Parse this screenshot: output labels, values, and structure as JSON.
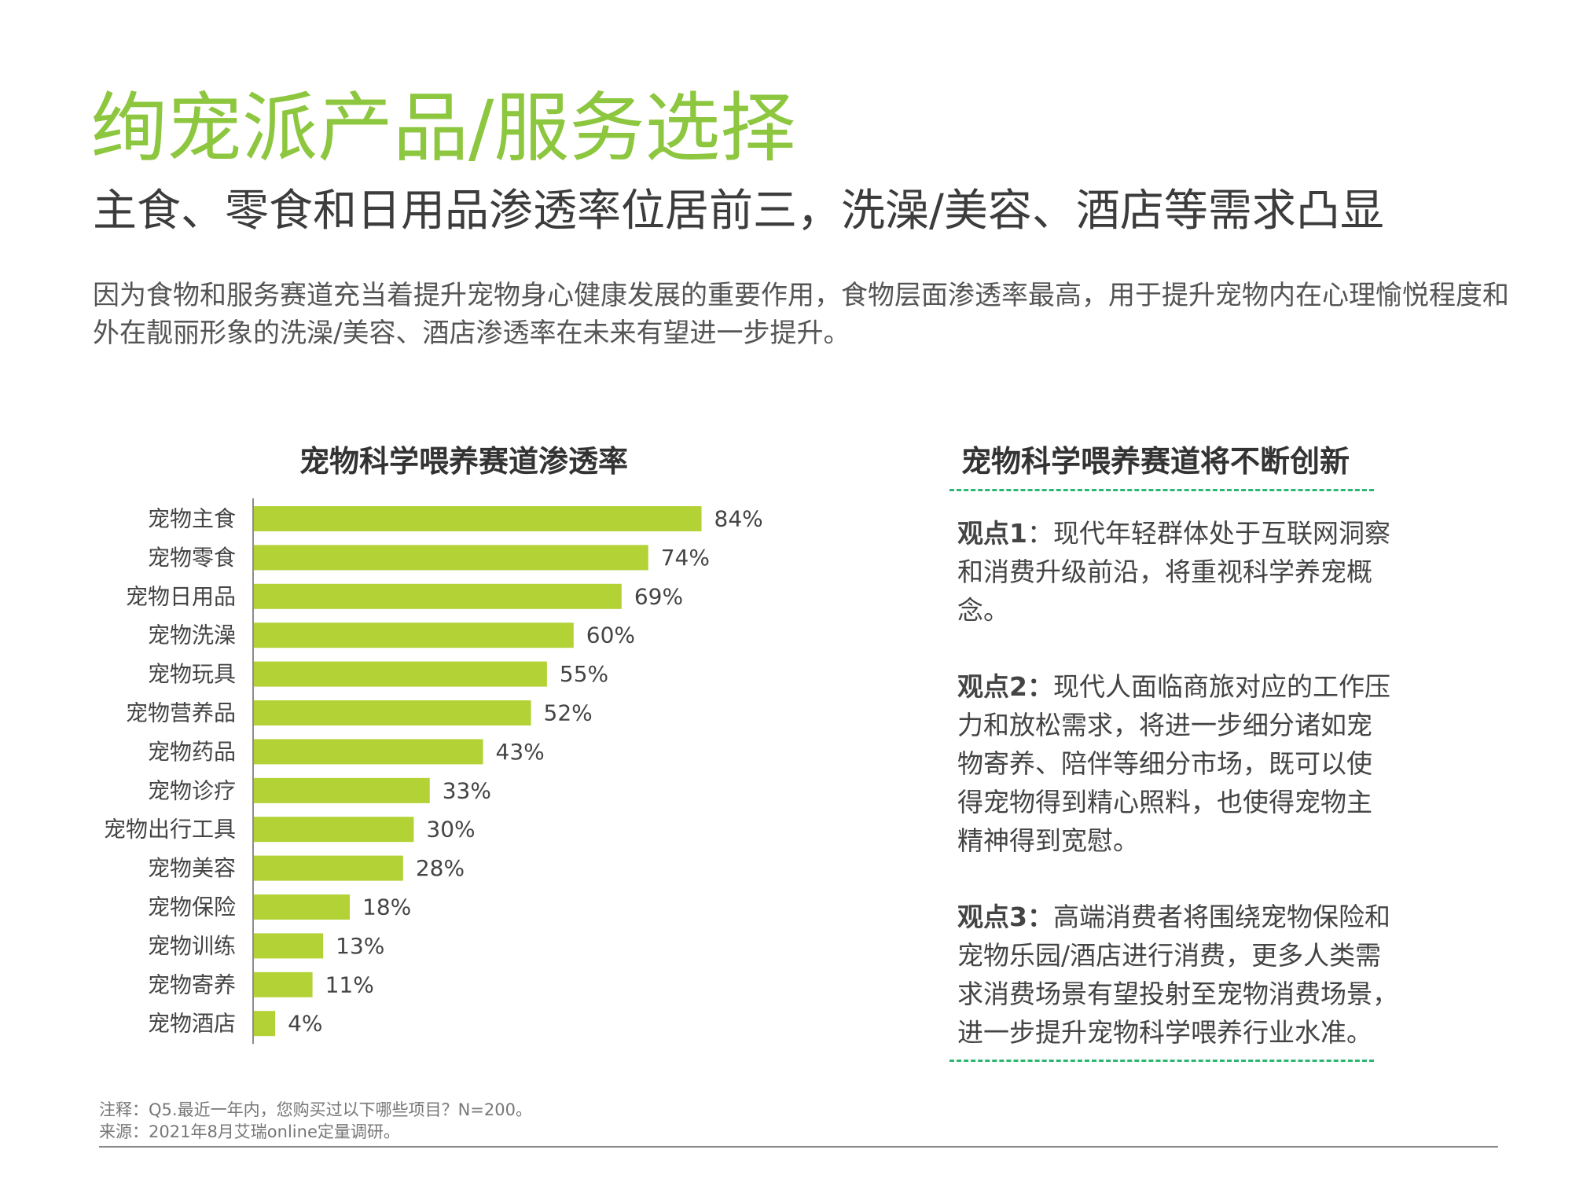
{
  "header": {
    "title": "绚宠派产品/服务选择",
    "subtitle": "主食、零食和日用品渗透率位居前三，洗澡/美容、酒店等需求凸显"
  },
  "description": {
    "line1": "因为食物和服务赛道充当着提升宠物身心健康发展的重要作用，食物层面渗透率最高，用于提升宠物内在心理愉悦程度和",
    "line2": "外在靓丽形象的洗澡/美容、酒店渗透率在未来有望进一步提升。"
  },
  "chart_data": {
    "type": "bar",
    "orientation": "horizontal",
    "title": "宠物科学喂养赛道渗透率",
    "categories": [
      "宠物主食",
      "宠物零食",
      "宠物日用品",
      "宠物洗澡",
      "宠物玩具",
      "宠物营养品",
      "宠物药品",
      "宠物诊疗",
      "宠物出行工具",
      "宠物美容",
      "宠物保险",
      "宠物训练",
      "宠物寄养",
      "宠物酒店"
    ],
    "values": [
      84,
      74,
      69,
      60,
      55,
      52,
      43,
      33,
      30,
      28,
      18,
      13,
      11,
      4
    ],
    "value_labels": [
      "84%",
      "74%",
      "69%",
      "60%",
      "55%",
      "52%",
      "43%",
      "33%",
      "30%",
      "28%",
      "18%",
      "13%",
      "11%",
      "4%"
    ],
    "unit": "%",
    "xlim": [
      0,
      100
    ],
    "grid": false,
    "bar_color": "#b2d235"
  },
  "insights": {
    "title": "宠物科学喂养赛道将不断创新",
    "divider_color": "#2bb673",
    "points": [
      {
        "label": "观点1",
        "lines": [
          "：现代年轻群体处于互联网洞察",
          "和消费升级前沿，将重视科学养宠概",
          "念。"
        ]
      },
      {
        "label": "观点2：",
        "lines": [
          "现代人面临商旅对应的工作压",
          "力和放松需求，将进一步细分诸如宠",
          "物寄养、陪伴等细分市场，既可以使",
          "得宠物得到精心照料，也使得宠物主",
          "精神得到宽慰。"
        ]
      },
      {
        "label": "观点3：",
        "lines": [
          "高端消费者将围绕宠物保险和",
          "宠物乐园/酒店进行消费，更多人类需",
          "求消费场景有望投射至宠物消费场景，",
          "进一步提升宠物科学喂养行业水准。"
        ]
      }
    ]
  },
  "footnotes": {
    "note": "注释：Q5.最近一年内，您购买过以下哪些项目？N=200。",
    "source": "来源：2021年8月艾瑞online定量调研。"
  }
}
